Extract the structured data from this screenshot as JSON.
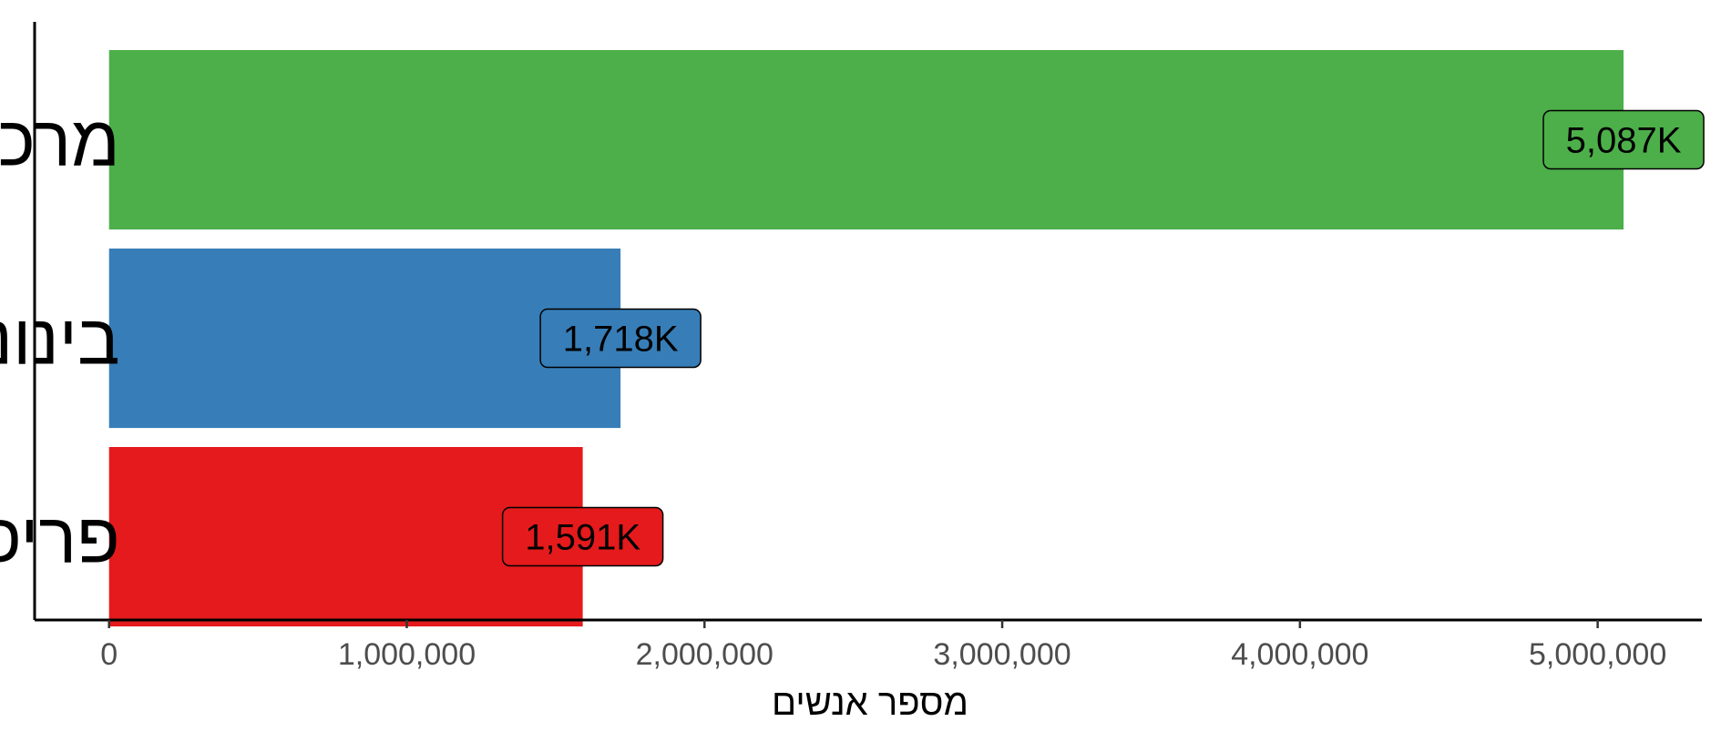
{
  "chart_data": {
    "type": "bar",
    "orientation": "horizontal",
    "categories": [
      "מרכזי",
      "בינוני",
      "פריפריאלי"
    ],
    "values": [
      5087000,
      1718000,
      1591000
    ],
    "value_labels": [
      "5,087K",
      "1,718K",
      "1,591K"
    ],
    "colors": [
      "#4DAF4A",
      "#377EB8",
      "#E41A1C"
    ],
    "xlabel": "מספר אנשים",
    "ylabel": "",
    "xlim": [
      -250000,
      5350000
    ],
    "x_ticks": [
      0,
      1000000,
      2000000,
      3000000,
      4000000,
      5000000
    ],
    "x_tick_labels": [
      "0",
      "1,000,000",
      "2,000,000",
      "3,000,000",
      "4,000,000",
      "5,000,000"
    ],
    "grid": false,
    "legend": "none"
  }
}
